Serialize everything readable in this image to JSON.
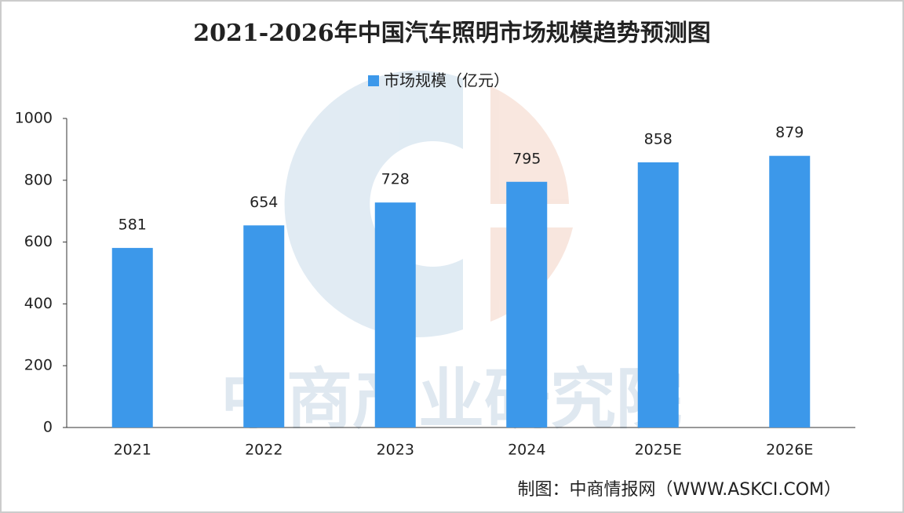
{
  "chart_data": {
    "type": "bar",
    "title": "2021-2026年中国汽车照明市场规模趋势预测图",
    "categories": [
      "2021",
      "2022",
      "2023",
      "2024",
      "2025E",
      "2026E"
    ],
    "series": [
      {
        "name": "市场规模（亿元）",
        "color": "#3c98ea",
        "values": [
          581,
          654,
          728,
          795,
          858,
          879
        ]
      }
    ],
    "ylim": [
      0,
      1000
    ],
    "yticks": [
      0,
      200,
      400,
      600,
      800,
      1000
    ],
    "source": "制图：中商情报网（WWW.ASKCI.COM）",
    "watermark": "中商产业研究院"
  }
}
